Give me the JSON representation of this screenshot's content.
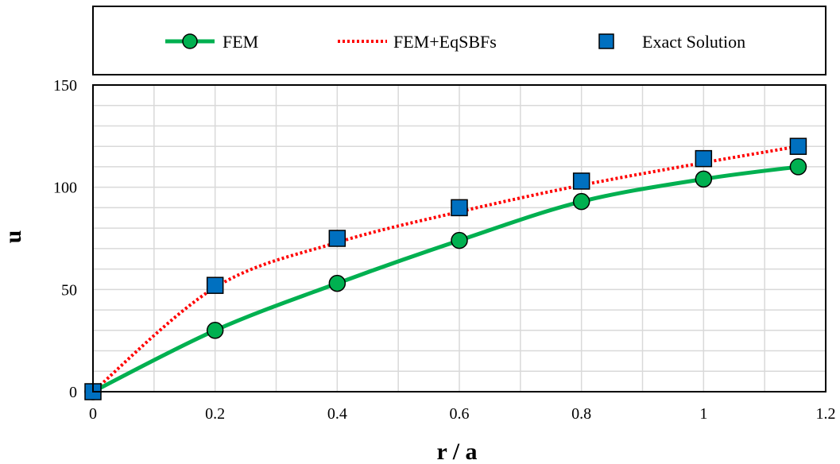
{
  "chart_data": {
    "type": "line",
    "xlabel": "r / a",
    "ylabel": "u",
    "xlim": [
      0,
      1.2
    ],
    "ylim": [
      0,
      150
    ],
    "x_ticks": [
      0,
      0.2,
      0.4,
      0.6,
      0.8,
      1,
      1.2
    ],
    "x_tick_labels": [
      "0",
      "0.2",
      "0.4",
      "0.6",
      "0.8",
      "1",
      "1.2"
    ],
    "y_ticks": [
      0,
      50,
      100,
      150
    ],
    "y_tick_labels": [
      "0",
      "50",
      "100",
      "150"
    ],
    "x_minor_step": 0.1,
    "y_minor_step": 10,
    "grid": true,
    "legend_position": "top",
    "series": [
      {
        "name": "FEM",
        "style": "solid-line-circle-markers",
        "color": "#00b050",
        "marker_color": "#00b050",
        "x": [
          0,
          0.2,
          0.4,
          0.6,
          0.8,
          1,
          1.155
        ],
        "y": [
          0,
          30,
          53,
          74,
          93,
          104,
          110
        ]
      },
      {
        "name": "FEM+EqSBFs",
        "style": "dotted-line",
        "color": "#ff0000",
        "x": [
          0,
          0.2,
          0.4,
          0.6,
          0.8,
          1,
          1.155
        ],
        "y": [
          0,
          51,
          73,
          88,
          101,
          112,
          120
        ]
      },
      {
        "name": "Exact Solution",
        "style": "square-markers",
        "marker_color": "#0070c0",
        "x": [
          0,
          0.2,
          0.4,
          0.6,
          0.8,
          1,
          1.155
        ],
        "y": [
          0,
          52,
          75,
          90,
          103,
          114,
          120
        ]
      }
    ]
  }
}
